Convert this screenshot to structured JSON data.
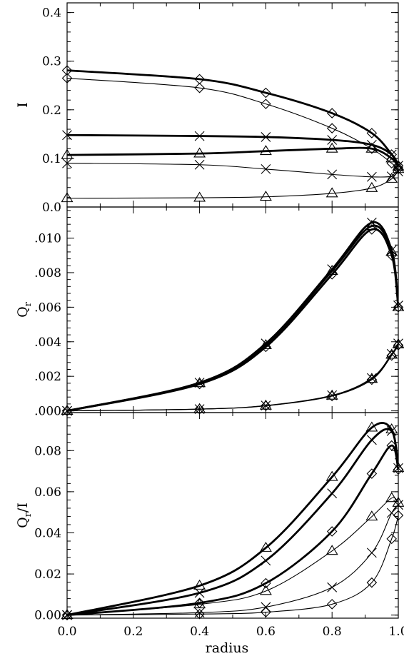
{
  "chart_data": [
    {
      "type": "line",
      "ylabel": "I",
      "ylabel_sub": "",
      "xlim": [
        0.0,
        1.0
      ],
      "ylim": [
        0.0,
        0.42
      ],
      "yticks": [
        0.0,
        0.1,
        0.2,
        0.3,
        0.4
      ],
      "ytick_labels": [
        "0.0",
        "0.1",
        "0.2",
        "0.3",
        "0.4"
      ],
      "series": [
        {
          "marker": "diamond",
          "thick": true,
          "x": [
            0.0,
            0.4,
            0.6,
            0.8,
            0.92,
            0.98,
            1.0
          ],
          "y": [
            0.281,
            0.263,
            0.235,
            0.193,
            0.152,
            0.108,
            0.085
          ]
        },
        {
          "marker": "diamond",
          "thick": false,
          "x": [
            0.0,
            0.4,
            0.6,
            0.8,
            0.92,
            0.98,
            1.0
          ],
          "y": [
            0.265,
            0.245,
            0.212,
            0.162,
            0.12,
            0.09,
            0.078
          ]
        },
        {
          "marker": "cross",
          "thick": true,
          "x": [
            0.0,
            0.4,
            0.6,
            0.8,
            0.92,
            0.98,
            1.0
          ],
          "y": [
            0.148,
            0.146,
            0.144,
            0.138,
            0.128,
            0.108,
            0.085
          ]
        },
        {
          "marker": "triangle",
          "thick": true,
          "x": [
            0.0,
            0.4,
            0.6,
            0.8,
            0.92,
            0.98,
            1.0
          ],
          "y": [
            0.107,
            0.11,
            0.115,
            0.12,
            0.12,
            0.1,
            0.083
          ]
        },
        {
          "marker": "cross",
          "thick": false,
          "x": [
            0.0,
            0.4,
            0.6,
            0.8,
            0.92,
            0.98,
            1.0
          ],
          "y": [
            0.09,
            0.087,
            0.078,
            0.067,
            0.062,
            0.063,
            0.073
          ]
        },
        {
          "marker": "triangle",
          "thick": false,
          "x": [
            0.0,
            0.4,
            0.6,
            0.8,
            0.92,
            0.98,
            1.0
          ],
          "y": [
            0.018,
            0.019,
            0.021,
            0.028,
            0.039,
            0.058,
            0.078
          ]
        }
      ]
    },
    {
      "type": "line",
      "ylabel": "Q",
      "ylabel_sub": "r",
      "xlim": [
        0.0,
        1.0
      ],
      "ylim": [
        -0.0001,
        0.0118
      ],
      "yticks": [
        0.0,
        0.002,
        0.004,
        0.006,
        0.008,
        0.01
      ],
      "ytick_labels": [
        ".000",
        ".002",
        ".004",
        ".006",
        ".008",
        ".010"
      ],
      "series": [
        {
          "marker": "cross",
          "thick": true,
          "x": [
            0.0,
            0.4,
            0.6,
            0.8,
            0.92,
            0.98,
            1.0
          ],
          "y": [
            0.0,
            0.00163,
            0.0039,
            0.0082,
            0.0109,
            0.0093,
            0.0061
          ]
        },
        {
          "marker": "triangle",
          "thick": true,
          "x": [
            0.0,
            0.4,
            0.6,
            0.8,
            0.92,
            0.98,
            1.0
          ],
          "y": [
            0.0,
            0.0016,
            0.0038,
            0.0081,
            0.0107,
            0.0092,
            0.006
          ]
        },
        {
          "marker": "diamond",
          "thick": true,
          "x": [
            0.0,
            0.4,
            0.6,
            0.8,
            0.92,
            0.98,
            1.0
          ],
          "y": [
            0.0,
            0.00155,
            0.0037,
            0.0079,
            0.0105,
            0.009,
            0.006
          ]
        },
        {
          "marker": "cross",
          "thick": false,
          "x": [
            0.0,
            0.4,
            0.6,
            0.8,
            0.92,
            0.98,
            1.0
          ],
          "y": [
            0.0,
            0.0001,
            0.00031,
            0.0009,
            0.0019,
            0.0033,
            0.0039
          ]
        },
        {
          "marker": "triangle",
          "thick": false,
          "x": [
            0.0,
            0.4,
            0.6,
            0.8,
            0.92,
            0.98,
            1.0
          ],
          "y": [
            0.0,
            0.0001,
            0.0003,
            0.00088,
            0.00185,
            0.00325,
            0.00385
          ]
        },
        {
          "marker": "diamond",
          "thick": false,
          "x": [
            0.0,
            0.4,
            0.6,
            0.8,
            0.92,
            0.98,
            1.0
          ],
          "y": [
            0.0,
            0.0001,
            0.00029,
            0.00085,
            0.0018,
            0.0032,
            0.0038
          ]
        }
      ]
    },
    {
      "type": "line",
      "ylabel": "Q",
      "ylabel_sub": "r",
      "ylabel_suffix": "/I",
      "xlabel": "radius",
      "xlim": [
        0.0,
        1.0
      ],
      "ylim": [
        -0.0015,
        0.0985
      ],
      "xticks": [
        0.0,
        0.2,
        0.4,
        0.6,
        0.8,
        1.0
      ],
      "xtick_labels": [
        "0.0",
        "0.2",
        "0.4",
        "0.6",
        "0.8",
        "1.0"
      ],
      "yticks": [
        0.0,
        0.02,
        0.04,
        0.06,
        0.08
      ],
      "ytick_labels": [
        "0.00",
        "0.02",
        "0.04",
        "0.06",
        "0.08"
      ],
      "series": [
        {
          "marker": "triangle",
          "thick": true,
          "x": [
            0.0,
            0.4,
            0.6,
            0.8,
            0.92,
            0.98,
            1.0
          ],
          "y": [
            0.0,
            0.0143,
            0.0327,
            0.0672,
            0.0912,
            0.0903,
            0.0715
          ]
        },
        {
          "marker": "cross",
          "thick": true,
          "x": [
            0.0,
            0.4,
            0.6,
            0.8,
            0.92,
            0.98,
            1.0
          ],
          "y": [
            0.0,
            0.0108,
            0.0265,
            0.0592,
            0.0852,
            0.0895,
            0.0715
          ]
        },
        {
          "marker": "diamond",
          "thick": true,
          "x": [
            0.0,
            0.4,
            0.6,
            0.8,
            0.92,
            0.98,
            1.0
          ],
          "y": [
            0.0,
            0.0059,
            0.0155,
            0.0407,
            0.0688,
            0.0825,
            0.0708
          ]
        },
        {
          "marker": "triangle",
          "thick": false,
          "x": [
            0.0,
            0.4,
            0.6,
            0.8,
            0.92,
            0.98,
            1.0
          ],
          "y": [
            0.0,
            0.0052,
            0.0117,
            0.0312,
            0.0479,
            0.0569,
            0.0546
          ]
        },
        {
          "marker": "cross",
          "thick": false,
          "x": [
            0.0,
            0.4,
            0.6,
            0.8,
            0.92,
            0.98,
            1.0
          ],
          "y": [
            0.0,
            0.0012,
            0.0039,
            0.0135,
            0.0303,
            0.0497,
            0.0536
          ]
        },
        {
          "marker": "diamond",
          "thick": false,
          "x": [
            0.0,
            0.4,
            0.6,
            0.8,
            0.92,
            0.98,
            1.0
          ],
          "y": [
            0.0,
            0.0005,
            0.0014,
            0.0053,
            0.0158,
            0.0371,
            0.0485
          ]
        }
      ]
    }
  ]
}
